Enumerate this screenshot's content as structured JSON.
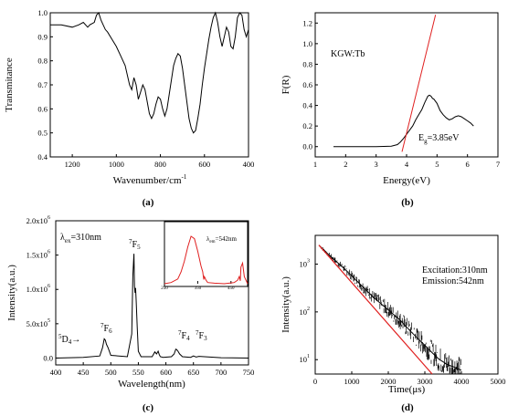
{
  "chart_data": [
    {
      "panel": "(a)",
      "type": "line",
      "xlabel": "Wavenumber/cm",
      "xlabel_sup": "-1",
      "ylabel": "Transmitance",
      "xlim": [
        1300,
        400
      ],
      "ylim": [
        0.4,
        1.0
      ],
      "xticks": [
        "1200",
        "1000",
        "800",
        "600",
        "400"
      ],
      "yticks": [
        "0.4",
        "0.5",
        "0.6",
        "0.7",
        "0.8",
        "0.9",
        "1.0"
      ],
      "series": [
        {
          "color": "#000000",
          "x": [
            1300,
            1250,
            1200,
            1170,
            1150,
            1130,
            1120,
            1100,
            1090,
            1080,
            1070,
            1060,
            1050,
            1040,
            1020,
            1000,
            980,
            960,
            940,
            930,
            920,
            910,
            900,
            890,
            880,
            870,
            860,
            850,
            840,
            830,
            820,
            810,
            800,
            790,
            780,
            770,
            760,
            750,
            740,
            730,
            720,
            710,
            700,
            690,
            680,
            670,
            660,
            650,
            640,
            630,
            620,
            610,
            600,
            590,
            580,
            570,
            560,
            550,
            540,
            530,
            520,
            510,
            500,
            490,
            480,
            470,
            460,
            450,
            440,
            430,
            420,
            410,
            400
          ],
          "y": [
            0.95,
            0.95,
            0.94,
            0.95,
            0.96,
            0.94,
            0.95,
            0.96,
            0.99,
            1.0,
            0.97,
            0.95,
            0.93,
            0.92,
            0.89,
            0.86,
            0.82,
            0.78,
            0.7,
            0.68,
            0.73,
            0.7,
            0.64,
            0.67,
            0.7,
            0.68,
            0.63,
            0.58,
            0.56,
            0.58,
            0.62,
            0.65,
            0.64,
            0.6,
            0.57,
            0.6,
            0.66,
            0.72,
            0.78,
            0.81,
            0.83,
            0.82,
            0.77,
            0.7,
            0.63,
            0.56,
            0.52,
            0.5,
            0.51,
            0.56,
            0.62,
            0.7,
            0.77,
            0.83,
            0.89,
            0.94,
            0.98,
            1.0,
            0.96,
            0.9,
            0.86,
            0.9,
            0.94,
            0.92,
            0.86,
            0.85,
            0.9,
            0.98,
            1.0,
            0.99,
            0.93,
            0.9,
            0.93
          ]
        }
      ]
    },
    {
      "panel": "(b)",
      "type": "line",
      "xlabel": "Energy(eV)",
      "ylabel": "F(R)",
      "xlim": [
        1,
        7
      ],
      "ylim": [
        -0.1,
        1.3
      ],
      "xticks": [
        "1",
        "2",
        "3",
        "4",
        "5",
        "6",
        "7"
      ],
      "yticks": [
        "0.0",
        "0.2",
        "0.4",
        "0.6",
        "0.8",
        "1.0",
        "1.2"
      ],
      "annotations": [
        "KGW:Tb",
        "E",
        "g",
        "=3.85eV"
      ],
      "series": [
        {
          "color": "#000000",
          "x": [
            1.6,
            2.0,
            2.5,
            3.0,
            3.5,
            3.7,
            3.8,
            3.9,
            4.0,
            4.1,
            4.2,
            4.3,
            4.4,
            4.5,
            4.6,
            4.7,
            4.75,
            4.8,
            4.85,
            4.9,
            5.0,
            5.1,
            5.2,
            5.3,
            5.4,
            5.5,
            5.6,
            5.7,
            5.8,
            5.9,
            6.0,
            6.1,
            6.2
          ],
          "y": [
            0.0,
            0.0,
            0.0,
            0.0,
            0.005,
            0.02,
            0.045,
            0.08,
            0.12,
            0.16,
            0.2,
            0.26,
            0.31,
            0.36,
            0.43,
            0.49,
            0.5,
            0.49,
            0.47,
            0.46,
            0.42,
            0.35,
            0.31,
            0.28,
            0.26,
            0.27,
            0.29,
            0.3,
            0.29,
            0.27,
            0.25,
            0.23,
            0.2
          ]
        },
        {
          "color": "#e02020",
          "x": [
            3.85,
            4.95
          ],
          "y": [
            -0.05,
            1.28
          ]
        }
      ]
    },
    {
      "panel": "(c)",
      "type": "line",
      "xlabel": "Wavelength(nm)",
      "ylabel": "Intensity(a.u.)",
      "xlim": [
        400,
        750
      ],
      "ylim": [
        -100000,
        2000000
      ],
      "xticks": [
        "400",
        "450",
        "500",
        "550",
        "600",
        "650",
        "700",
        "750"
      ],
      "yticks": [
        "0.0",
        "5.0x10",
        "1.0x10",
        "1.5x10",
        "2.0x10"
      ],
      "ytick_sup": [
        "",
        "5",
        "6",
        "6",
        "6"
      ],
      "annotations": [
        "λ",
        "ex",
        "=310nm",
        "5",
        "D",
        "4",
        "→",
        "7",
        "F",
        "6",
        "5",
        "4",
        "3"
      ],
      "series": [
        {
          "color": "#000000",
          "x": [
            400,
            450,
            480,
            485,
            488,
            490,
            492,
            495,
            500,
            530,
            538,
            540,
            542,
            543,
            544,
            545,
            546,
            548,
            550,
            555,
            575,
            580,
            583,
            586,
            588,
            590,
            595,
            610,
            615,
            618,
            620,
            622,
            625,
            630,
            645,
            650,
            655,
            660,
            700,
            750
          ],
          "y": [
            0,
            10000,
            30000,
            150000,
            280000,
            260000,
            200000,
            150000,
            40000,
            20000,
            350000,
            1200000,
            1520000,
            1050000,
            950000,
            1020000,
            850000,
            450000,
            100000,
            20000,
            20000,
            90000,
            60000,
            100000,
            50000,
            20000,
            10000,
            20000,
            60000,
            130000,
            120000,
            100000,
            60000,
            20000,
            10000,
            30000,
            15000,
            25000,
            5000,
            0
          ]
        }
      ]
    },
    {
      "panel": "(c) inset",
      "type": "line",
      "xlim": [
        250,
        500
      ],
      "xticks": [
        "250",
        "350",
        "450"
      ],
      "annotations": [
        "λ",
        "em",
        "=542nm"
      ],
      "series": [
        {
          "color": "#e02020",
          "x": [
            250,
            270,
            290,
            300,
            310,
            320,
            330,
            340,
            350,
            360,
            365,
            368,
            370,
            375,
            380,
            400,
            430,
            460,
            470,
            475,
            478,
            480,
            485,
            490,
            500
          ],
          "y": [
            0.0,
            0.02,
            0.08,
            0.2,
            0.38,
            0.62,
            0.8,
            0.76,
            0.55,
            0.3,
            0.2,
            0.07,
            0.12,
            0.06,
            0.02,
            0.01,
            0.0,
            0.02,
            0.06,
            0.12,
            0.05,
            0.28,
            0.35,
            0.12,
            0.0
          ]
        }
      ]
    },
    {
      "panel": "(d)",
      "type": "line",
      "xlabel": "Time(μs)",
      "ylabel": "Intensity(a.u.)",
      "yscale": "log",
      "xlim": [
        0,
        5000
      ],
      "ylim": [
        5,
        4000
      ],
      "xticks": [
        "0",
        "1000",
        "2000",
        "3000",
        "4000",
        "5000"
      ],
      "yticks": [
        "10",
        "10",
        "10"
      ],
      "ytick_sup": [
        "1",
        "2",
        "3"
      ],
      "annotations": [
        "Excitation:310nm",
        "Emission:542nm"
      ],
      "series": [
        {
          "color": "#000000",
          "x": [
            100,
            400,
            800,
            1200,
            1600,
            2000,
            2300,
            2600,
            2800,
            3000,
            3200,
            3400,
            3500,
            3600,
            3800,
            4000
          ],
          "y": [
            2500,
            1500,
            800,
            400,
            200,
            110,
            70,
            40,
            28,
            20,
            14,
            10,
            9,
            8,
            7,
            6
          ]
        },
        {
          "color": "#e02020",
          "x": [
            100,
            3200
          ],
          "y": [
            2500,
            5
          ]
        }
      ]
    }
  ],
  "captions": [
    "(a)",
    "(b)",
    "(c)",
    "(d)"
  ]
}
